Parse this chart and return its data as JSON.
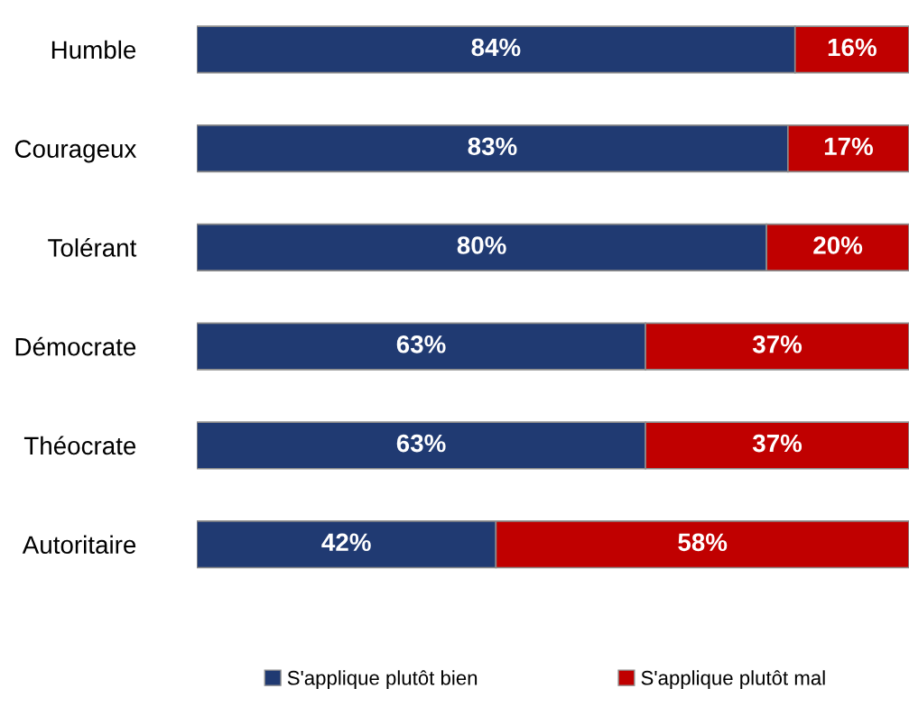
{
  "chart_data": {
    "type": "bar",
    "orientation": "horizontal",
    "stacked": true,
    "categories": [
      "Humble",
      "Courageux",
      "Tolérant",
      "Démocrate",
      "Théocrate",
      "Autoritaire"
    ],
    "series": [
      {
        "name": "S'applique plutôt bien",
        "color": "#203a72",
        "values": [
          84,
          83,
          80,
          63,
          63,
          42
        ],
        "value_labels": [
          "84%",
          "83%",
          "80%",
          "63%",
          "63%",
          "42%"
        ]
      },
      {
        "name": "S'applique plutôt mal",
        "color": "#c00000",
        "values": [
          16,
          17,
          20,
          37,
          37,
          58
        ],
        "value_labels": [
          "16%",
          "17%",
          "20%",
          "37%",
          "37%",
          "58%"
        ]
      }
    ],
    "xlim": [
      0,
      100
    ],
    "tick_labels": "y",
    "grid": false,
    "legend": "bottom"
  }
}
